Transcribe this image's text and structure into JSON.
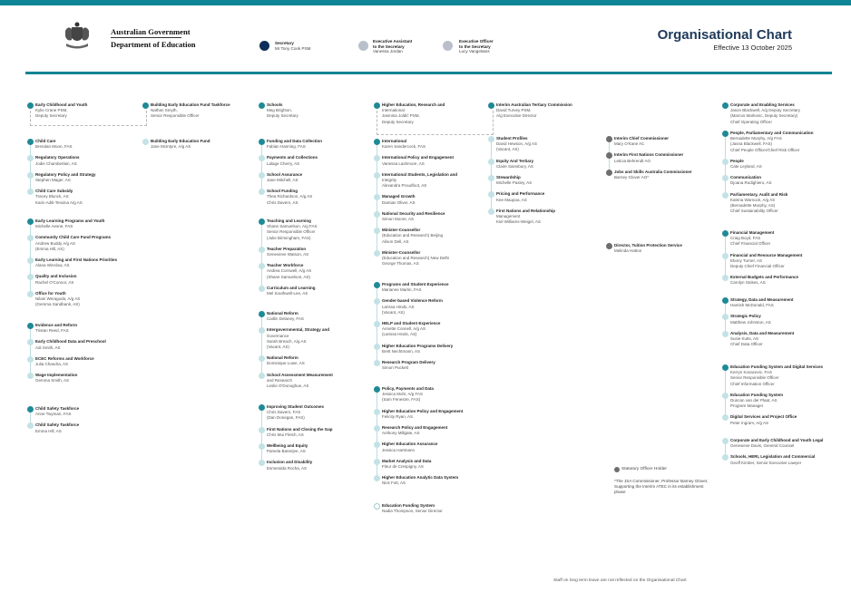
{
  "header": {
    "logo_line1": "Australian Government",
    "logo_line2": "Department of Education",
    "title": "Organisational Chart",
    "effective": "Effective 13 October 2025",
    "colors": {
      "brand_teal": "#0f8494",
      "secretary": "#0d2e5a",
      "exec": "#b9c0cc",
      "title": "#1f3a5a"
    }
  },
  "legend": [
    {
      "title": "Secretary",
      "lines": [
        "Mr Tony Cook PSM"
      ]
    },
    {
      "title": "Executive Assistant",
      "lines": [
        "to the Secretary",
        "Vanessa Jordan"
      ]
    },
    {
      "title": "Executive Officer",
      "lines": [
        "to the Secretary",
        "Lucy Vangelatos"
      ]
    }
  ],
  "columns": [
    {
      "groups": [
        {
          "items": [
            {
              "kind": "dark",
              "title": "Early Childhood and Youth",
              "lines": [
                "Kylie Crane PSM,",
                "Deputy Secretary"
              ]
            }
          ]
        },
        {
          "items": [
            {
              "kind": "dark",
              "title": "Child Care",
              "lines": [
                "Brendan Moon, FAS"
              ]
            },
            {
              "kind": "light",
              "title": "Regulatory Operations",
              "lines": [
                "Jodie Chamberlain, AS"
              ]
            },
            {
              "kind": "light",
              "title": "Regulatory Policy and Strategy",
              "lines": [
                "Stephen Mager, AS"
              ]
            },
            {
              "kind": "light",
              "title": "Child Care Subsidy",
              "lines": [
                "Tracey Blunck, AS",
                "Karin Aditi-Tessina A/g AS"
              ]
            }
          ]
        },
        {
          "items": [
            {
              "kind": "dark",
              "title": "Early Learning Programs and Youth",
              "lines": [
                "Michelle Aesne, FAS"
              ]
            },
            {
              "kind": "light",
              "title": "Community Child Care Fund Programs",
              "lines": [
                "Andrew Buddy A/g AS",
                "(Emma Hill, AS)"
              ]
            },
            {
              "kind": "light",
              "title": "Early Learning and First Nations Priorities",
              "lines": [
                "Alana Winslow, AS"
              ]
            },
            {
              "kind": "light",
              "title": "Quality and Inclusion",
              "lines": [
                "Rachel O'Connor, AS"
              ]
            },
            {
              "kind": "light",
              "title": "Office for Youth",
              "lines": [
                "Nilani Weragoda, A/g AS",
                "(Gemma Sandbank, AS)"
              ]
            }
          ]
        },
        {
          "items": [
            {
              "kind": "dark",
              "title": "Evidence and Reform",
              "lines": [
                "Tristan Reed, FAS"
              ]
            },
            {
              "kind": "light",
              "title": "Early Childhood Data and Preschool",
              "lines": [
                "Adi Smith, AS"
              ]
            },
            {
              "kind": "light",
              "title": "ECEC Reforms and Workforce",
              "lines": [
                "Julia Chandra, AS"
              ]
            },
            {
              "kind": "light",
              "title": "Wage Implementation",
              "lines": [
                "Gemma Smith, AS"
              ]
            }
          ]
        },
        {
          "items": [
            {
              "kind": "dark",
              "title": "Child Safety Taskforce",
              "lines": [
                "Anne Twyman, FAS"
              ]
            },
            {
              "kind": "light",
              "title": "Child Safety Taskforce",
              "lines": [
                "Emma Hill, AS"
              ]
            }
          ]
        }
      ]
    },
    {
      "groups": [
        {
          "items": [
            {
              "kind": "dark",
              "title": "Building Early Education Fund Taskforce",
              "lines": [
                "Nathan Smyth,",
                "Senior Responsible Officer"
              ]
            }
          ]
        },
        {
          "items": [
            {
              "kind": "light",
              "title": "Building Early Education Fund",
              "lines": [
                "Jane McIntyre, A/g AS"
              ]
            }
          ]
        }
      ]
    },
    {
      "groups": [
        {
          "items": [
            {
              "kind": "dark",
              "title": "Schools",
              "lines": [
                "Meg Brighton,",
                "Deputy Secretary"
              ]
            }
          ]
        },
        {
          "items": [
            {
              "kind": "dark",
              "title": "Funding and Data Collection",
              "lines": [
                "Fabian Hanning, FAS"
              ]
            },
            {
              "kind": "light",
              "title": "Payments and Collections",
              "lines": [
                "Lalage Cherry, AS"
              ]
            },
            {
              "kind": "light",
              "title": "School Assurance",
              "lines": [
                "Jane Mitchell, AS"
              ]
            },
            {
              "kind": "light",
              "title": "School Funding",
              "lines": [
                "Thea Richardson, A/g AS",
                "Chris Davern, AS"
              ]
            }
          ]
        },
        {
          "items": [
            {
              "kind": "dark",
              "title": "Teaching and Learning",
              "lines": [
                "Shane Samuelson, A/g FAS",
                "Senior Responsible Officer",
                "(Julie Birmingham, FAS)"
              ]
            },
            {
              "kind": "light",
              "title": "Teacher Preparation",
              "lines": [
                "Genevieve Watson, AS"
              ]
            },
            {
              "kind": "light",
              "title": "Teacher Workforce",
              "lines": [
                "Andrea Cornwell, A/g AS",
                "(Shane Samuelson, AS)"
              ]
            },
            {
              "kind": "light",
              "title": "Curriculum and Learning",
              "lines": [
                "Mel Southwell-Lee, AS"
              ]
            }
          ]
        },
        {
          "items": [
            {
              "kind": "dark",
              "title": "National Reform",
              "lines": [
                "Caitlin Delaney, FAS"
              ]
            },
            {
              "kind": "light",
              "title": "Intergovernmental, Strategy and",
              "lines": [
                "Governance",
                "Sarah Breach, A/g AS",
                "(Vacant, AS)"
              ]
            },
            {
              "kind": "light",
              "title": "National Reform",
              "lines": [
                "Dominique Lowe, AS"
              ]
            },
            {
              "kind": "light",
              "title": "School Assessment Measurement",
              "lines": [
                "and Research",
                "Leslie O'Donoghue, AS"
              ]
            }
          ]
        },
        {
          "items": [
            {
              "kind": "dark",
              "title": "Improving Student Outcomes",
              "lines": [
                "Chris Davern, FAS",
                "(Dan Donegan, FAS)"
              ]
            },
            {
              "kind": "light",
              "title": "First Nations and Closing the Gap",
              "lines": [
                "Chris Mui Fletch, AS"
              ]
            },
            {
              "kind": "light",
              "title": "Wellbeing and Equity",
              "lines": [
                "Pamela Banerjee, AS"
              ]
            },
            {
              "kind": "light",
              "title": "Inclusion and Disability",
              "lines": [
                "Esmeralda Rocha, AS"
              ]
            }
          ]
        }
      ]
    },
    {
      "groups": [
        {
          "items": [
            {
              "kind": "dark",
              "title": "Higher Education, Research and",
              "lines": [
                "International",
                "Jasmina Joldić PSM,",
                "Deputy Secretary"
              ]
            }
          ]
        },
        {
          "items": [
            {
              "kind": "dark",
              "title": "International",
              "lines": [
                "Karen Sandercock, FAS"
              ]
            },
            {
              "kind": "light",
              "title": "International Policy and Engagement",
              "lines": [
                "Vanessa Lashmore, AS"
              ]
            },
            {
              "kind": "light",
              "title": "International Students, Legislation and",
              "lines": [
                "Integrity",
                "Alexandra Proudfoot, AS"
              ]
            },
            {
              "kind": "light",
              "title": "Managed Growth",
              "lines": [
                "Damian Oliver, AS"
              ]
            },
            {
              "kind": "light",
              "title": "National Security and Resilience",
              "lines": [
                "Simon Moore, AS"
              ]
            },
            {
              "kind": "light",
              "title": "Minister-Counsellor",
              "lines": [
                "(Education and Research) Beijing",
                "Alison Dell, AS"
              ]
            },
            {
              "kind": "light",
              "title": "Minister-Counsellor",
              "lines": [
                "(Education and Research) New Delhi",
                "George Thomas, AS"
              ]
            }
          ]
        },
        {
          "items": [
            {
              "kind": "dark",
              "title": "Programs and Student Experience",
              "lines": [
                "Marianne Martin, FAS"
              ]
            },
            {
              "kind": "light",
              "title": "Gender-based Violence Reform",
              "lines": [
                "Larissa Hinds, AS",
                "(Vacant, AS)"
              ]
            },
            {
              "kind": "light",
              "title": "HELP and Student Experience",
              "lines": [
                "Annette Connell, A/g AS",
                "(Larissa Hinds, AS)"
              ]
            },
            {
              "kind": "light",
              "title": "Higher Education Programs Delivery",
              "lines": [
                "Brett Nechtmann, AS"
              ]
            },
            {
              "kind": "light",
              "title": "Research Program Delivery",
              "lines": [
                "Simon Puckett"
              ]
            }
          ]
        },
        {
          "items": [
            {
              "kind": "dark",
              "title": "Policy, Payments and Data",
              "lines": [
                "Jessica Mohr, A/g FAS",
                "(Sam Fenestre, FAS)"
              ]
            },
            {
              "kind": "light",
              "title": "Higher Education Policy and Engagement",
              "lines": [
                "Felicity Ryan, AS"
              ]
            },
            {
              "kind": "light",
              "title": "Research Policy and Engagement",
              "lines": [
                "Anthony Millgate, AS"
              ]
            },
            {
              "kind": "light",
              "title": "Higher Education Assurance",
              "lines": [
                "Jessica Hartmann"
              ]
            },
            {
              "kind": "light",
              "title": "Market Analysis and Data",
              "lines": [
                "Fleur de Crespigny, AS"
              ]
            },
            {
              "kind": "light",
              "title": "Higher Education Analytic Data System",
              "lines": [
                "Nick Fott, AS"
              ]
            }
          ]
        },
        {
          "items": [
            {
              "kind": "outline",
              "title": "Education Funding System",
              "lines": [
                "Nadia Thompson, Senior Director"
              ]
            }
          ]
        }
      ]
    },
    {
      "groups": [
        {
          "items": [
            {
              "kind": "dark",
              "title": "Interim Australian Tertiary Commission",
              "lines": [
                "David Turvey PSM,",
                "A/g Executive Director"
              ]
            }
          ]
        },
        {
          "items": [
            {
              "kind": "light",
              "title": "Student Profiles",
              "lines": [
                "David Hewson, A/g AS",
                "(Vacant, AS)"
              ]
            },
            {
              "kind": "light",
              "title": "Equity And Tertiary",
              "lines": [
                "Claire Sainsbury, AS"
              ]
            },
            {
              "kind": "light",
              "title": "Stewardship",
              "lines": [
                "Michelle Paxley, AS"
              ]
            },
            {
              "kind": "light",
              "title": "Pricing and Performance",
              "lines": [
                "Kee Maupoa, AS"
              ]
            },
            {
              "kind": "light",
              "title": "First Nations and Relationship",
              "lines": [
                "Management",
                "Kiel Williams-Weigel, AS"
              ]
            }
          ]
        }
      ]
    },
    {
      "groups": [
        {
          "items": [
            {
              "kind": "grey",
              "title": "Interim Chief Commissioner",
              "lines": [
                "Mary O'Kane AC"
              ]
            },
            {
              "kind": "grey",
              "title": "Interim First Nations Commissioner",
              "lines": [
                "Leticia Behrendt AO"
              ]
            },
            {
              "kind": "grey",
              "title": "Jobs and Skills Australia Commissioner",
              "lines": [
                "Barney Glover AO*"
              ]
            }
          ]
        },
        {
          "items": [
            {
              "kind": "grey",
              "title": "Director, Tuition Protection Service",
              "lines": [
                "Melinda Hatton"
              ]
            }
          ]
        }
      ]
    },
    {
      "groups": [
        {
          "items": [
            {
              "kind": "dark",
              "title": "Corporate and Enabling Services",
              "lines": [
                "Jason Blackwell, A/g Deputy Secretary",
                "(Marcus Markovic, Deputy Secretary)",
                "Chief Operating Officer"
              ]
            }
          ]
        },
        {
          "items": [
            {
              "kind": "dark",
              "title": "People, Parliamentary and Communication",
              "lines": [
                "Bernadette Murphy, A/g FAS",
                "(Jasna Blackwell, FAS)",
                "Chief People Officer/Chief Risk Officer"
              ]
            },
            {
              "kind": "light",
              "title": "People",
              "lines": [
                "Cate Leyland, AS"
              ]
            },
            {
              "kind": "light",
              "title": "Communication",
              "lines": [
                "Djoana Rodighiero, AS"
              ]
            },
            {
              "kind": "light",
              "title": "Parliamentary, Audit and Risk",
              "lines": [
                "Katrina Warnock, A/g AS",
                "(Bernadette Murphy, AS)",
                "Chief Sustainability Officer"
              ]
            }
          ]
        },
        {
          "items": [
            {
              "kind": "dark",
              "title": "Financial Management",
              "lines": [
                "Craig Boyd, FAS",
                "Chief Financial Officer"
              ]
            },
            {
              "kind": "light",
              "title": "Financial and Resource Management",
              "lines": [
                "Ebony Turner, AS",
                "Deputy Chief Financial Officer"
              ]
            },
            {
              "kind": "light",
              "title": "External Budgets and Performance",
              "lines": [
                "Carolyn Stokes, AS"
              ]
            }
          ]
        },
        {
          "items": [
            {
              "kind": "dark",
              "title": "Strategy, Data and Measurement",
              "lines": [
                "Hamish McDonald, FAS"
              ]
            },
            {
              "kind": "light",
              "title": "Strategic Policy",
              "lines": [
                "Matthew Johnston, AS"
              ]
            },
            {
              "kind": "light",
              "title": "Analysis, Data and Measurement",
              "lines": [
                "Susie Kutts, AS",
                "Chief Data Officer"
              ]
            }
          ]
        },
        {
          "items": [
            {
              "kind": "dark",
              "title": "Education Funding System and Digital Services",
              "lines": [
                "Kerryn Kovacevic, FAS",
                "Senior Responsible Officer",
                "Chief Information Officer"
              ]
            },
            {
              "kind": "light",
              "title": "Education Funding System",
              "lines": [
                "Duncan van der Plaat, AS",
                "Program Manager"
              ]
            },
            {
              "kind": "light",
              "title": "Digital Services and Project Office",
              "lines": [
                "Peter Ingram, A/g AS"
              ]
            }
          ]
        },
        {
          "items": [
            {
              "kind": "light",
              "title": "Corporate and Early Childhood and Youth Legal",
              "lines": [
                "Genevieve Davis, General Counsel"
              ]
            },
            {
              "kind": "light",
              "title": "Schools, HERI, Legislation and Commercial",
              "lines": [
                "Geoff Kimber, Senior Executive Lawyer"
              ]
            }
          ]
        }
      ]
    }
  ],
  "statutory_legend": "Statutory Officer Holder",
  "note": "*The JSA Commissioner, Professor Barney Glover, Supporting the Interim ATEC in its establishment phase",
  "footer": "Staff on long term leave are not reflected on the Organisational Chart"
}
